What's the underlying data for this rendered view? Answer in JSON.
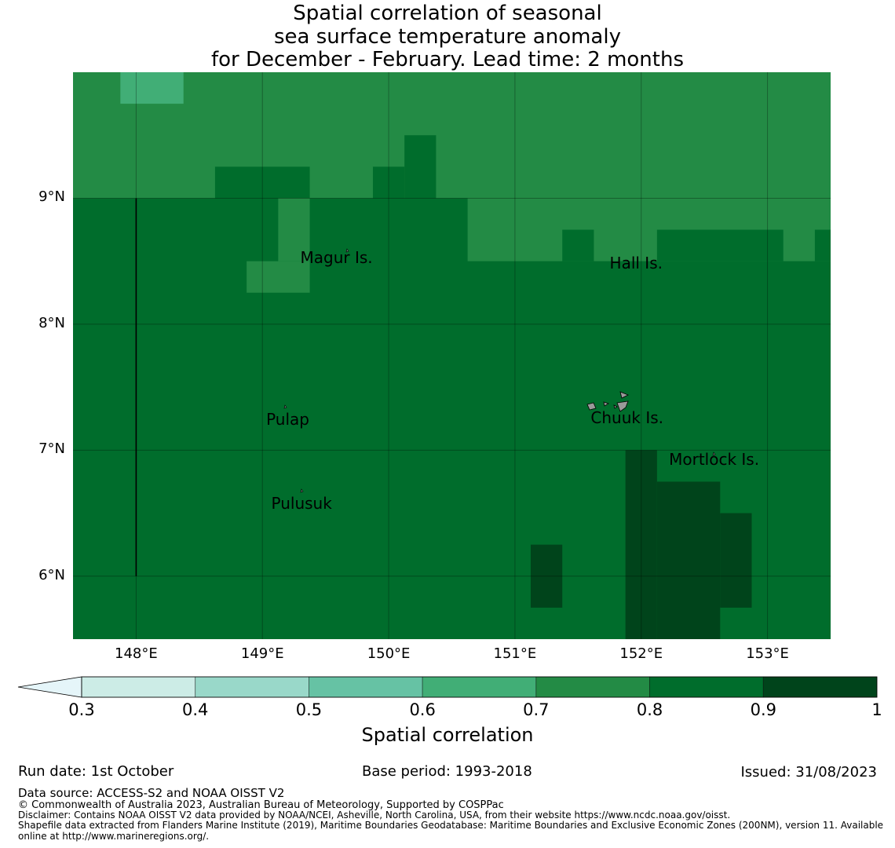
{
  "title": {
    "line1": "Spatial correlation of seasonal",
    "line2": "sea surface temperature anomaly",
    "line3": "for December - February. Lead time: 2 months"
  },
  "map": {
    "lon_range": [
      147.5,
      153.5
    ],
    "lat_range": [
      5.5,
      10.0
    ],
    "lat_ticks": [
      {
        "value": 9,
        "label": "9°N"
      },
      {
        "value": 8,
        "label": "8°N"
      },
      {
        "value": 7,
        "label": "7°N"
      },
      {
        "value": 6,
        "label": "6°N"
      }
    ],
    "lon_ticks": [
      {
        "value": 148,
        "label": "148°E"
      },
      {
        "value": 149,
        "label": "149°E"
      },
      {
        "value": 150,
        "label": "150°E"
      },
      {
        "value": 151,
        "label": "151°E"
      },
      {
        "value": 152,
        "label": "152°E"
      },
      {
        "value": 153,
        "label": "153°E"
      }
    ],
    "boundary_line": {
      "lon": 148.0,
      "lat_from": 6.0,
      "lat_to": 9.0
    },
    "background_class": "0.8-0.9",
    "cells": [
      {
        "lon": [
          147.5,
          153.5
        ],
        "lat": [
          9.0,
          10.0
        ],
        "class": "0.7-0.8"
      },
      {
        "lon": [
          147.875,
          148.375
        ],
        "lat": [
          9.75,
          10.0
        ],
        "class": "0.6-0.7"
      },
      {
        "lon": [
          148.625,
          149.375
        ],
        "lat": [
          9.0,
          9.25
        ],
        "class": "0.8-0.9"
      },
      {
        "lon": [
          149.875,
          150.125
        ],
        "lat": [
          9.0,
          9.25
        ],
        "class": "0.8-0.9"
      },
      {
        "lon": [
          150.125,
          150.375
        ],
        "lat": [
          9.0,
          9.5
        ],
        "class": "0.8-0.9"
      },
      {
        "lon": [
          149.125,
          149.375
        ],
        "lat": [
          8.5,
          9.0
        ],
        "class": "0.7-0.8"
      },
      {
        "lon": [
          148.875,
          149.375
        ],
        "lat": [
          8.25,
          8.5
        ],
        "class": "0.7-0.8"
      },
      {
        "lon": [
          150.625,
          153.5
        ],
        "lat": [
          8.5,
          9.0
        ],
        "class": "0.7-0.8"
      },
      {
        "lon": [
          151.375,
          151.625
        ],
        "lat": [
          8.5,
          8.75
        ],
        "class": "0.8-0.9"
      },
      {
        "lon": [
          152.125,
          153.125
        ],
        "lat": [
          8.5,
          8.75
        ],
        "class": "0.8-0.9"
      },
      {
        "lon": [
          153.375,
          153.5
        ],
        "lat": [
          8.5,
          8.75
        ],
        "class": "0.8-0.9"
      },
      {
        "lon": [
          151.875,
          152.125
        ],
        "lat": [
          5.5,
          7.0
        ],
        "class": "0.9-1"
      },
      {
        "lon": [
          152.125,
          152.625
        ],
        "lat": [
          5.5,
          6.75
        ],
        "class": "0.9-1"
      },
      {
        "lon": [
          152.625,
          152.875
        ],
        "lat": [
          5.75,
          6.5
        ],
        "class": "0.9-1"
      },
      {
        "lon": [
          151.125,
          151.375
        ],
        "lat": [
          5.75,
          6.25
        ],
        "class": "0.9-1"
      }
    ],
    "places": [
      {
        "name": "Magur Is.",
        "lon": 149.3,
        "lat": 8.52
      },
      {
        "name": "Hall Is.",
        "lon": 151.75,
        "lat": 8.48
      },
      {
        "name": "Pulap",
        "lon": 149.03,
        "lat": 7.24
      },
      {
        "name": "Chuuk Is.",
        "lon": 151.6,
        "lat": 7.25
      },
      {
        "name": "Mortlock Is.",
        "lon": 152.22,
        "lat": 6.92
      },
      {
        "name": "Pulusuk",
        "lon": 149.07,
        "lat": 6.57
      }
    ]
  },
  "colorbar": {
    "title": "Spatial correlation",
    "extend": "min",
    "ticks": [
      "0.3",
      "0.4",
      "0.5",
      "0.6",
      "0.7",
      "0.8",
      "0.9",
      "1"
    ],
    "under_color": "#e5f5f9",
    "colors": [
      "#ccece6",
      "#99d8c9",
      "#66c2a4",
      "#41ae76",
      "#238b45",
      "#006d2c",
      "#00441b"
    ]
  },
  "footer": {
    "run_date": "Run date: 1st October",
    "base_period": "Base period: 1993-2018",
    "issued": "Issued: 31/08/2023",
    "data_source": "Data source: ACCESS-S2 and NOAA OISST V2",
    "copyright": "© Commonwealth of Australia 2023, Australian Bureau of Meteorology, Supported by COSPPac",
    "disclaimer": "Disclaimer: Contains NOAA OISST V2 data provided by NOAA/NCEI, Asheville, North Carolina, USA, from their website https://www.ncdc.noaa.gov/oisst.",
    "shapefile_line1": "Shapefile data extracted from Flanders Marine Institute (2019), Maritime Boundaries Geodatabase: Maritime Boundaries and Exclusive Economic Zones (200NM), version 11. Available",
    "shapefile_line2": "online at http://www.marineregions.org/."
  }
}
